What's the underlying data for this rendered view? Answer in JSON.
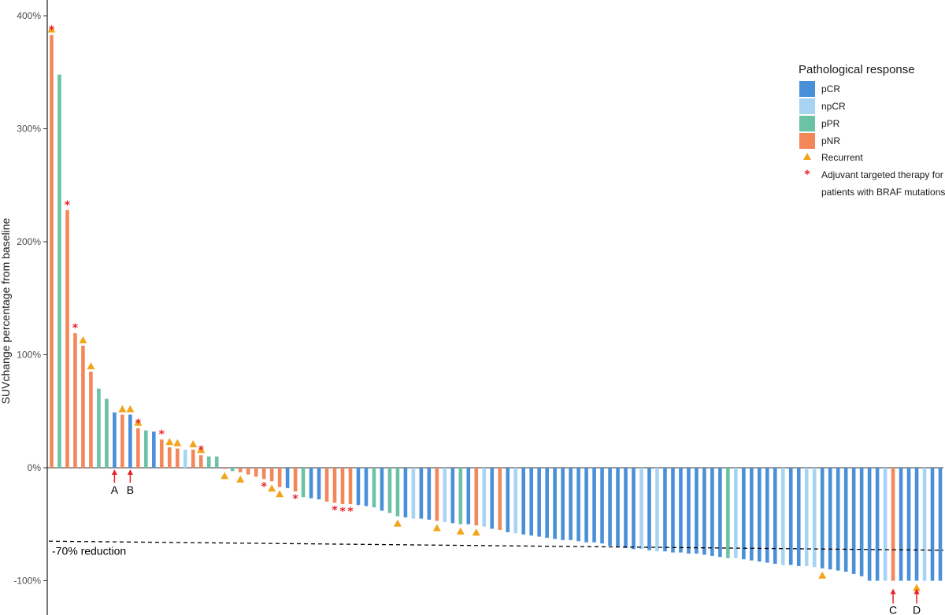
{
  "chart_data": {
    "type": "bar",
    "ylabel": "SUVchange percentage from baseline",
    "y_ticks": [
      {
        "value": 400,
        "label": "400%"
      },
      {
        "value": 300,
        "label": "300%"
      },
      {
        "value": 200,
        "label": "200%"
      },
      {
        "value": 100,
        "label": "100%"
      },
      {
        "value": 0,
        "label": "0%"
      },
      {
        "value": -100,
        "label": "-100%"
      }
    ],
    "ylim": [
      -130,
      410
    ],
    "grid": false,
    "legend_position": "right",
    "legend": {
      "title": "Pathological response",
      "categories": [
        {
          "key": "pCR",
          "label": "pCR",
          "color": "#4a90d9"
        },
        {
          "key": "npCR",
          "label": "npCR",
          "color": "#a7d4f2"
        },
        {
          "key": "pPR",
          "label": "pPR",
          "color": "#6cc2a4"
        },
        {
          "key": "pNR",
          "label": "pNR",
          "color": "#f4875a"
        }
      ],
      "markers": [
        {
          "key": "recurrent",
          "label": "Recurrent",
          "color": "#f2a51a",
          "shape": "triangle"
        },
        {
          "key": "adjuvant",
          "label_lines": [
            "Adjuvant targeted therapy for",
            "patients with BRAF mutations"
          ],
          "color": "#e8212a",
          "shape": "asterisk"
        }
      ]
    },
    "bars": [
      {
        "v": 383,
        "r": "pNR",
        "m": "both"
      },
      {
        "v": 348,
        "r": "pPR"
      },
      {
        "v": 228,
        "r": "pNR",
        "m": "star"
      },
      {
        "v": 119,
        "r": "pNR",
        "m": "star"
      },
      {
        "v": 108,
        "r": "pNR",
        "m": "tri"
      },
      {
        "v": 85,
        "r": "pNR",
        "m": "tri"
      },
      {
        "v": 70,
        "r": "pPR"
      },
      {
        "v": 61,
        "r": "pPR"
      },
      {
        "v": 49,
        "r": "pCR"
      },
      {
        "v": 47,
        "r": "pNR",
        "m": "tri"
      },
      {
        "v": 47,
        "r": "pCR",
        "m": "tri"
      },
      {
        "v": 35,
        "r": "pNR",
        "m": "both"
      },
      {
        "v": 33,
        "r": "pPR"
      },
      {
        "v": 32,
        "r": "pCR"
      },
      {
        "v": 25,
        "r": "pNR",
        "m": "star"
      },
      {
        "v": 18,
        "r": "pNR",
        "m": "tri"
      },
      {
        "v": 17,
        "r": "pNR",
        "m": "tri"
      },
      {
        "v": 16,
        "r": "npCR"
      },
      {
        "v": 16,
        "r": "pNR",
        "m": "tri"
      },
      {
        "v": 11,
        "r": "pNR",
        "m": "both"
      },
      {
        "v": 10,
        "r": "pPR"
      },
      {
        "v": 10,
        "r": "pPR"
      },
      {
        "v": -1,
        "r": "pNR",
        "m": "tri"
      },
      {
        "v": -3,
        "r": "pPR"
      },
      {
        "v": -4,
        "r": "pNR",
        "m": "tri"
      },
      {
        "v": -6,
        "r": "pNR"
      },
      {
        "v": -8,
        "r": "pNR"
      },
      {
        "v": -10,
        "r": "pNR",
        "m": "star"
      },
      {
        "v": -12,
        "r": "pNR",
        "m": "tri"
      },
      {
        "v": -17,
        "r": "pNR",
        "m": "tri"
      },
      {
        "v": -18,
        "r": "pCR"
      },
      {
        "v": -21,
        "r": "pNR",
        "m": "star"
      },
      {
        "v": -26,
        "r": "pPR"
      },
      {
        "v": -27,
        "r": "pCR"
      },
      {
        "v": -28,
        "r": "pCR"
      },
      {
        "v": -30,
        "r": "pNR"
      },
      {
        "v": -31,
        "r": "pNR",
        "m": "star"
      },
      {
        "v": -32,
        "r": "pNR",
        "m": "star"
      },
      {
        "v": -32,
        "r": "pNR",
        "m": "star"
      },
      {
        "v": -33,
        "r": "pCR"
      },
      {
        "v": -34,
        "r": "pCR"
      },
      {
        "v": -35,
        "r": "pPR"
      },
      {
        "v": -38,
        "r": "pCR"
      },
      {
        "v": -40,
        "r": "pPR"
      },
      {
        "v": -43,
        "r": "pPR",
        "m": "tri"
      },
      {
        "v": -44,
        "r": "pCR"
      },
      {
        "v": -45,
        "r": "npCR"
      },
      {
        "v": -45,
        "r": "pCR"
      },
      {
        "v": -46,
        "r": "pCR"
      },
      {
        "v": -47,
        "r": "pNR",
        "m": "tri"
      },
      {
        "v": -48,
        "r": "npCR"
      },
      {
        "v": -49,
        "r": "pCR"
      },
      {
        "v": -50,
        "r": "pPR",
        "m": "tri"
      },
      {
        "v": -50,
        "r": "pCR"
      },
      {
        "v": -51,
        "r": "pNR",
        "m": "tri"
      },
      {
        "v": -52,
        "r": "npCR"
      },
      {
        "v": -54,
        "r": "pCR"
      },
      {
        "v": -55,
        "r": "pNR"
      },
      {
        "v": -57,
        "r": "pCR"
      },
      {
        "v": -58,
        "r": "npCR"
      },
      {
        "v": -59,
        "r": "pCR"
      },
      {
        "v": -60,
        "r": "pCR"
      },
      {
        "v": -61,
        "r": "pCR"
      },
      {
        "v": -62,
        "r": "pCR"
      },
      {
        "v": -63,
        "r": "pCR"
      },
      {
        "v": -64,
        "r": "pCR"
      },
      {
        "v": -64,
        "r": "pCR"
      },
      {
        "v": -65,
        "r": "pCR"
      },
      {
        "v": -66,
        "r": "pCR"
      },
      {
        "v": -66,
        "r": "pCR"
      },
      {
        "v": -67,
        "r": "pCR"
      },
      {
        "v": -69,
        "r": "pCR"
      },
      {
        "v": -70,
        "r": "pCR"
      },
      {
        "v": -71,
        "r": "pCR"
      },
      {
        "v": -72,
        "r": "pCR"
      },
      {
        "v": -72,
        "r": "npCR"
      },
      {
        "v": -73,
        "r": "pCR"
      },
      {
        "v": -74,
        "r": "npCR"
      },
      {
        "v": -74,
        "r": "pCR"
      },
      {
        "v": -75,
        "r": "pCR"
      },
      {
        "v": -75,
        "r": "pCR"
      },
      {
        "v": -76,
        "r": "pCR"
      },
      {
        "v": -76,
        "r": "pCR"
      },
      {
        "v": -77,
        "r": "pCR"
      },
      {
        "v": -78,
        "r": "pCR"
      },
      {
        "v": -79,
        "r": "pCR"
      },
      {
        "v": -80,
        "r": "pPR"
      },
      {
        "v": -80,
        "r": "npCR"
      },
      {
        "v": -81,
        "r": "pCR"
      },
      {
        "v": -82,
        "r": "pCR"
      },
      {
        "v": -83,
        "r": "pCR"
      },
      {
        "v": -84,
        "r": "pCR"
      },
      {
        "v": -85,
        "r": "pCR"
      },
      {
        "v": -86,
        "r": "npCR"
      },
      {
        "v": -86,
        "r": "pCR"
      },
      {
        "v": -87,
        "r": "pCR"
      },
      {
        "v": -87,
        "r": "npCR"
      },
      {
        "v": -88,
        "r": "npCR"
      },
      {
        "v": -89,
        "r": "pCR",
        "m": "tri"
      },
      {
        "v": -90,
        "r": "pCR"
      },
      {
        "v": -91,
        "r": "pCR"
      },
      {
        "v": -92,
        "r": "pCR"
      },
      {
        "v": -94,
        "r": "pCR"
      },
      {
        "v": -96,
        "r": "pCR"
      },
      {
        "v": -100,
        "r": "pCR"
      },
      {
        "v": -100,
        "r": "pCR"
      },
      {
        "v": -100,
        "r": "npCR"
      },
      {
        "v": -100,
        "r": "pNR",
        "arrow": "C"
      },
      {
        "v": -100,
        "r": "pCR"
      },
      {
        "v": -100,
        "r": "pCR"
      },
      {
        "v": -100,
        "r": "pCR",
        "m": "tri",
        "arrow": "D"
      },
      {
        "v": -100,
        "r": "npCR"
      },
      {
        "v": -100,
        "r": "pCR"
      },
      {
        "v": -100,
        "r": "pCR"
      }
    ],
    "arrows_above_axis": [
      {
        "label": "A",
        "bar_index": 8
      },
      {
        "label": "B",
        "bar_index": 10
      }
    ],
    "reference_line": {
      "label": "-70% reduction",
      "style": "dashed",
      "y_start": -65,
      "y_end": -73
    }
  }
}
